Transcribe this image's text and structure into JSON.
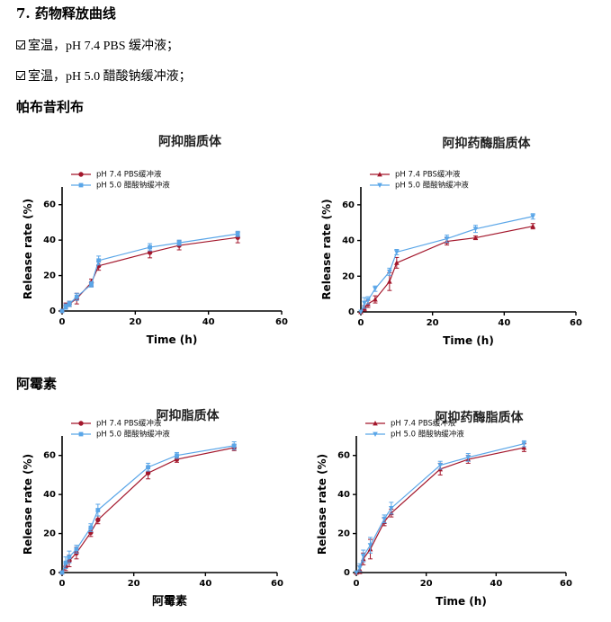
{
  "section_title": "7.  药物释放曲线",
  "conditions": [
    "室温，pH 7.4 PBS 缓冲液；",
    "室温，pH 5.0  醋酸钠缓冲液；"
  ],
  "drug_groups": [
    "帕布昔利布",
    "阿霉素"
  ],
  "colors": {
    "series_a": "#a3162b",
    "series_b": "#5aa6e8"
  },
  "chart_data": [
    {
      "type": "line",
      "title": "阿抑脂质体",
      "xlabel": "Time (h)",
      "ylabel": "Release rate (%)",
      "xlim": [
        0,
        60
      ],
      "ylim": [
        0,
        70
      ],
      "xticks": [
        0,
        20,
        40,
        60
      ],
      "yticks": [
        0,
        20,
        40,
        60
      ],
      "legend_position": "top-left",
      "series": [
        {
          "name": "pH 7.4 PBS缓冲液",
          "marker": "circle",
          "x": [
            0,
            1,
            2,
            4,
            8,
            10,
            24,
            32,
            48
          ],
          "y": [
            0,
            3,
            4,
            7,
            16,
            25.5,
            33,
            37,
            41.5
          ],
          "err": [
            0,
            1.5,
            1.5,
            3,
            2,
            2.5,
            3,
            2.5,
            3
          ]
        },
        {
          "name": "pH  5.0  醋酸钠缓冲液",
          "marker": "square",
          "x": [
            0,
            1,
            2,
            4,
            8,
            10,
            24,
            32,
            48
          ],
          "y": [
            0,
            2.5,
            4,
            8,
            15,
            28.5,
            36,
            38.5,
            43.5
          ],
          "err": [
            0,
            1.5,
            1.5,
            2,
            1.5,
            2.5,
            2,
            1.5,
            1.5
          ]
        }
      ]
    },
    {
      "type": "line",
      "title": "阿抑药酶脂质体",
      "xlabel": "Time (h)",
      "ylabel": "Release rate (%)",
      "xlim": [
        0,
        60
      ],
      "ylim": [
        0,
        70
      ],
      "xticks": [
        0,
        20,
        40,
        60
      ],
      "yticks": [
        0,
        20,
        40,
        60
      ],
      "legend_position": "top-left",
      "series": [
        {
          "name": "pH 7.4 PBS缓冲液",
          "marker": "triangle-up",
          "x": [
            0,
            1,
            2,
            4,
            8,
            10,
            24,
            32,
            48
          ],
          "y": [
            0,
            2,
            4.5,
            7,
            17,
            27.5,
            39.5,
            41.5,
            48
          ],
          "err": [
            0,
            1.5,
            2,
            2,
            5,
            3,
            2,
            1,
            1.5
          ]
        },
        {
          "name": "pH  5.0  醋酸钠缓冲液",
          "marker": "triangle-down",
          "x": [
            0,
            1,
            2,
            4,
            8,
            10,
            24,
            32,
            48
          ],
          "y": [
            0,
            5,
            6.5,
            13,
            22.5,
            33.5,
            41,
            46.5,
            53.5
          ],
          "err": [
            0,
            3,
            2,
            1.5,
            2,
            1.5,
            2,
            2,
            1.5
          ]
        }
      ]
    },
    {
      "type": "line",
      "title": "阿抑脂质体",
      "xlabel": "阿霉素",
      "ylabel": "Release rate (%)",
      "xlim": [
        0,
        60
      ],
      "ylim": [
        0,
        70
      ],
      "xticks": [
        0,
        20,
        40,
        60
      ],
      "yticks": [
        0,
        20,
        40,
        60
      ],
      "legend_position": "top-left",
      "series": [
        {
          "name": "pH 7.4 PBS缓冲液",
          "marker": "circle",
          "x": [
            0,
            1,
            2,
            4,
            8,
            10,
            24,
            32,
            48
          ],
          "y": [
            0,
            3,
            6,
            10,
            20.5,
            27,
            51,
            58,
            64
          ],
          "err": [
            0,
            2,
            3,
            3,
            2,
            2,
            3,
            1.5,
            1.5
          ]
        },
        {
          "name": "pH  5.0  醋酸钠缓冲液",
          "marker": "square",
          "x": [
            0,
            1,
            2,
            4,
            8,
            10,
            24,
            32,
            48
          ],
          "y": [
            0,
            5,
            8,
            12,
            23,
            32,
            54,
            60,
            65
          ],
          "err": [
            0,
            3,
            3,
            2,
            2,
            3,
            2,
            1.5,
            2
          ]
        }
      ]
    },
    {
      "type": "line",
      "title": "阿抑药酶脂质体",
      "xlabel": "Time (h)",
      "ylabel": "Release rate (%)",
      "xlim": [
        0,
        60
      ],
      "ylim": [
        0,
        70
      ],
      "xticks": [
        0,
        20,
        40,
        60
      ],
      "yticks": [
        0,
        20,
        40,
        60
      ],
      "legend_position": "top-left",
      "series": [
        {
          "name": "pH 7.4 PBS缓冲液",
          "marker": "triangle-up",
          "x": [
            0,
            1,
            2,
            4,
            8,
            10,
            24,
            32,
            48
          ],
          "y": [
            0,
            1.5,
            7,
            12,
            26,
            30.5,
            53,
            58,
            64
          ],
          "err": [
            0,
            2,
            3,
            5,
            2,
            2,
            3,
            2,
            2
          ]
        },
        {
          "name": "pH  5.0  醋酸钠缓冲液",
          "marker": "triangle-down",
          "x": [
            0,
            1,
            2,
            4,
            8,
            10,
            24,
            32,
            48
          ],
          "y": [
            0,
            2.5,
            8.5,
            14,
            27.5,
            33,
            55,
            59,
            66
          ],
          "err": [
            0,
            2,
            3,
            4,
            2,
            3,
            2,
            2,
            1.5
          ]
        }
      ]
    }
  ]
}
